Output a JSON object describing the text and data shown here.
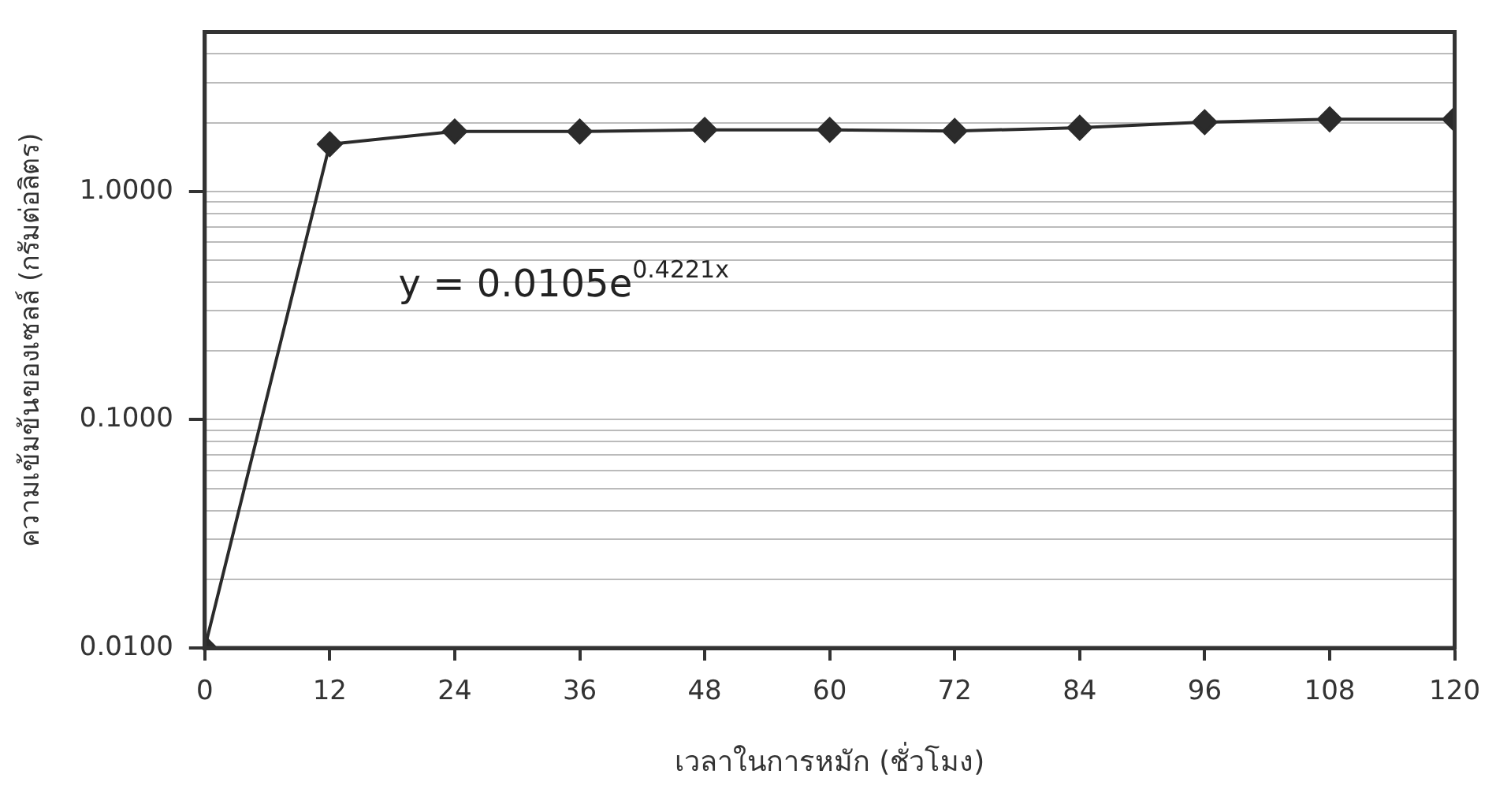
{
  "chart_data": {
    "type": "line",
    "x": [
      0,
      12,
      24,
      36,
      48,
      60,
      72,
      84,
      96,
      108,
      120
    ],
    "series": [
      {
        "color": "#2b2b2b",
        "values": [
          0.01,
          1.61,
          1.83,
          1.83,
          1.86,
          1.86,
          1.84,
          1.9,
          2.01,
          2.07,
          2.07
        ]
      }
    ],
    "xlim": [
      0,
      120
    ],
    "xticks": [
      0,
      12,
      24,
      36,
      48,
      60,
      72,
      84,
      96,
      108,
      120
    ],
    "ylim": [
      0.01,
      5
    ],
    "yticks": [
      {
        "value": 0.01,
        "label": "0.0100"
      },
      {
        "value": 0.02,
        "label": null
      },
      {
        "value": 0.03,
        "label": null
      },
      {
        "value": 0.04,
        "label": null
      },
      {
        "value": 0.05,
        "label": null
      },
      {
        "value": 0.06,
        "label": null
      },
      {
        "value": 0.07,
        "label": null
      },
      {
        "value": 0.08,
        "label": null
      },
      {
        "value": 0.09,
        "label": null
      },
      {
        "value": 0.1,
        "label": "0.1000"
      },
      {
        "value": 0.2,
        "label": null
      },
      {
        "value": 0.3,
        "label": null
      },
      {
        "value": 0.4,
        "label": null
      },
      {
        "value": 0.5,
        "label": null
      },
      {
        "value": 0.6,
        "label": null
      },
      {
        "value": 0.7,
        "label": null
      },
      {
        "value": 0.8,
        "label": null
      },
      {
        "value": 0.9,
        "label": null
      },
      {
        "value": 1,
        "label": "1.0000"
      },
      {
        "value": 2,
        "label": null
      },
      {
        "value": 3,
        "label": null
      },
      {
        "value": 4,
        "label": null
      }
    ],
    "log": "y",
    "grid": "y",
    "marker": "diamond",
    "line_style": "solid",
    "legend": false,
    "xlabel": "เวลาในการหมัก (ชั่วโมง)",
    "ylabel": "ความเข้มข้นของเซลล์ (กรัมต่อลิตร)",
    "annotations": [
      "y = 0.0105e$^{0.4221x}$"
    ]
  }
}
